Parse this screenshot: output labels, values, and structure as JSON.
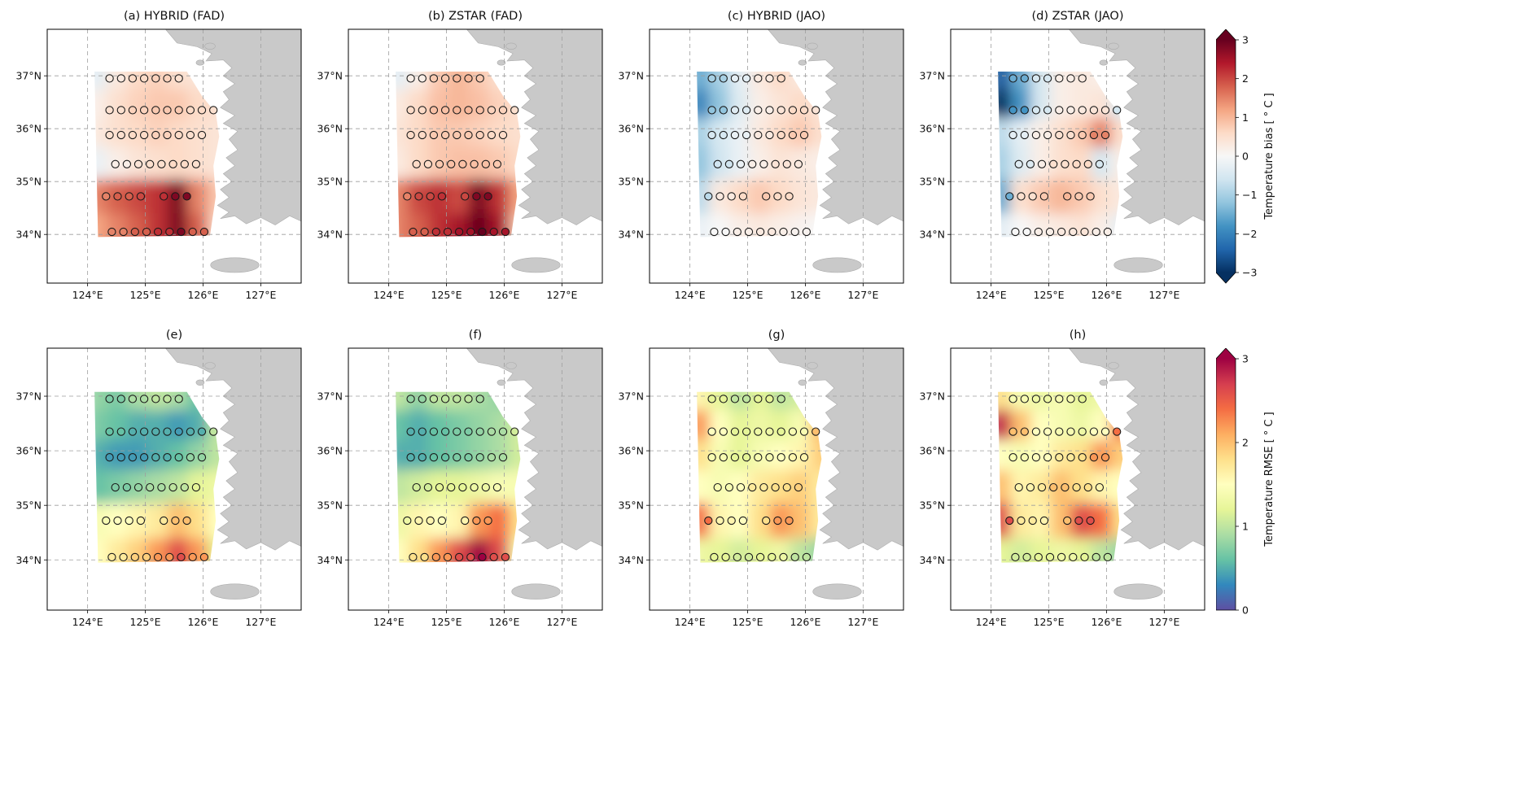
{
  "chart_data": {
    "type": "heatmap",
    "title": "",
    "units": "°C",
    "x_axis": {
      "label": "",
      "ticks": [
        "124°E",
        "125°E",
        "126°E",
        "127°E"
      ],
      "tick_values": [
        124,
        125,
        126,
        127
      ],
      "range": [
        123.3,
        127.7
      ],
      "grid": true
    },
    "y_axis": {
      "label": "",
      "ticks": [
        "34°N",
        "35°N",
        "36°N",
        "37°N"
      ],
      "tick_values": [
        34,
        35,
        36,
        37
      ],
      "range": [
        33.08,
        37.88
      ],
      "grid": true
    },
    "grid_lons": [
      124.2,
      124.55,
      124.9,
      125.25,
      125.6,
      125.95,
      126.3
    ],
    "grid_lats": [
      37.0,
      36.4,
      35.9,
      35.3,
      34.7,
      34.0
    ],
    "station_rows": [
      {
        "lat": 36.95,
        "lons": [
          124.38,
          124.58,
          124.78,
          124.98,
          125.18,
          125.38,
          125.58
        ]
      },
      {
        "lat": 36.35,
        "lons": [
          124.38,
          124.58,
          124.78,
          124.98,
          125.18,
          125.38,
          125.58,
          125.78,
          125.98,
          126.18
        ]
      },
      {
        "lat": 35.88,
        "lons": [
          124.38,
          124.58,
          124.78,
          124.98,
          125.18,
          125.38,
          125.58,
          125.78,
          125.98
        ]
      },
      {
        "lat": 35.33,
        "lons": [
          124.48,
          124.68,
          124.88,
          125.08,
          125.28,
          125.48,
          125.68,
          125.88
        ]
      },
      {
        "lat": 34.72,
        "lons": [
          124.32,
          124.52,
          124.72,
          124.92,
          125.32,
          125.52,
          125.72
        ]
      },
      {
        "lat": 34.05,
        "lons": [
          124.42,
          124.62,
          124.82,
          125.02,
          125.22,
          125.42,
          125.62,
          125.82,
          126.02
        ]
      }
    ],
    "panels": [
      {
        "id": "a",
        "row": 0,
        "colorbar": "bias",
        "title": "(a) HYBRID (FAD)",
        "values": [
          [
            -0.3,
            0.3,
            0.6,
            0.7,
            0.5,
            0.4,
            0.3
          ],
          [
            0.2,
            0.5,
            0.7,
            0.8,
            0.8,
            0.6,
            0.5
          ],
          [
            0.3,
            0.5,
            0.6,
            0.7,
            0.6,
            0.5,
            0.4
          ],
          [
            -0.2,
            0.2,
            0.4,
            0.5,
            0.6,
            0.5,
            0.4
          ],
          [
            1.5,
            1.8,
            2.0,
            2.2,
            2.8,
            1.5,
            0.8
          ],
          [
            1.2,
            1.5,
            1.8,
            2.2,
            2.8,
            1.8,
            0.6
          ]
        ]
      },
      {
        "id": "b",
        "row": 0,
        "colorbar": "bias",
        "title": "(b) ZSTAR (FAD)",
        "values": [
          [
            -0.3,
            0.2,
            0.8,
            1.0,
            0.8,
            0.5,
            0.4
          ],
          [
            0.3,
            0.6,
            0.9,
            1.0,
            0.9,
            0.7,
            0.5
          ],
          [
            0.4,
            0.6,
            0.8,
            0.8,
            0.7,
            0.6,
            0.5
          ],
          [
            0.3,
            0.6,
            0.8,
            0.9,
            0.9,
            0.8,
            0.6
          ],
          [
            1.5,
            2.0,
            2.2,
            2.0,
            2.8,
            2.2,
            1.2
          ],
          [
            1.5,
            1.8,
            2.2,
            2.5,
            3.0,
            2.5,
            0.8
          ]
        ]
      },
      {
        "id": "c",
        "row": 0,
        "colorbar": "bias",
        "title": "(c) HYBRID (JAO)",
        "values": [
          [
            -1.5,
            -1.0,
            -0.3,
            0.3,
            0.6,
            0.3,
            0.2
          ],
          [
            -2.0,
            -1.2,
            -0.4,
            0.2,
            0.4,
            0.6,
            0.4
          ],
          [
            -1.0,
            -0.5,
            -0.2,
            0.3,
            0.6,
            0.8,
            0.5
          ],
          [
            -1.2,
            -0.6,
            -0.2,
            0.2,
            0.4,
            0.3,
            0.2
          ],
          [
            -0.8,
            0.3,
            0.6,
            0.8,
            0.6,
            0.4,
            0.3
          ],
          [
            -0.2,
            0.0,
            0.2,
            0.3,
            0.2,
            0.1,
            0.0
          ]
        ]
      },
      {
        "id": "d",
        "row": 0,
        "colorbar": "bias",
        "title": "(d) ZSTAR (JAO)",
        "values": [
          [
            -2.5,
            -1.5,
            -0.5,
            0.2,
            0.3,
            0.2,
            0.1
          ],
          [
            -3.0,
            -1.8,
            -0.5,
            0.2,
            0.3,
            0.4,
            -0.5
          ],
          [
            -0.8,
            -0.3,
            0.2,
            0.5,
            0.8,
            1.5,
            0.5
          ],
          [
            -1.0,
            -0.4,
            0.2,
            0.5,
            0.6,
            -0.5,
            0.2
          ],
          [
            -1.5,
            0.5,
            0.8,
            1.0,
            0.8,
            0.5,
            0.3
          ],
          [
            -0.3,
            0.0,
            0.2,
            0.3,
            0.4,
            0.2,
            -0.3
          ]
        ]
      },
      {
        "id": "e",
        "row": 1,
        "colorbar": "rmse",
        "title": "(e)",
        "values": [
          [
            0.8,
            0.7,
            0.9,
            1.0,
            0.9,
            0.6,
            1.0
          ],
          [
            0.7,
            0.6,
            0.5,
            0.5,
            0.4,
            0.5,
            1.0
          ],
          [
            0.5,
            0.4,
            0.4,
            0.5,
            0.6,
            0.8,
            1.0
          ],
          [
            0.6,
            0.7,
            0.8,
            0.9,
            1.0,
            1.2,
            1.3
          ],
          [
            1.4,
            1.5,
            1.6,
            1.7,
            2.0,
            1.8,
            1.5
          ],
          [
            1.5,
            1.7,
            1.9,
            2.2,
            2.6,
            2.2,
            1.2
          ]
        ]
      },
      {
        "id": "f",
        "row": 1,
        "colorbar": "rmse",
        "title": "(f)",
        "values": [
          [
            1.0,
            0.8,
            1.0,
            1.0,
            0.9,
            0.8,
            1.0
          ],
          [
            0.6,
            0.5,
            0.6,
            0.7,
            0.8,
            0.9,
            1.1
          ],
          [
            0.5,
            0.5,
            0.6,
            0.7,
            0.8,
            0.9,
            1.1
          ],
          [
            1.0,
            1.1,
            1.2,
            1.2,
            1.3,
            1.4,
            1.4
          ],
          [
            1.3,
            1.6,
            1.5,
            1.6,
            2.2,
            2.4,
            1.8
          ],
          [
            1.5,
            1.8,
            2.2,
            2.6,
            3.0,
            2.6,
            1.4
          ]
        ]
      },
      {
        "id": "g",
        "row": 1,
        "colorbar": "rmse",
        "title": "(g)",
        "values": [
          [
            1.6,
            1.2,
            1.0,
            1.2,
            1.0,
            1.1,
            1.3
          ],
          [
            2.2,
            1.5,
            1.2,
            1.3,
            1.2,
            1.4,
            2.0
          ],
          [
            1.8,
            1.4,
            1.2,
            1.4,
            1.5,
            1.6,
            1.9
          ],
          [
            1.5,
            1.4,
            1.5,
            1.7,
            1.8,
            1.9,
            1.7
          ],
          [
            2.4,
            1.6,
            1.5,
            1.8,
            2.2,
            2.0,
            1.7
          ],
          [
            1.3,
            1.2,
            1.1,
            1.2,
            1.3,
            1.0,
            0.8
          ]
        ]
      },
      {
        "id": "h",
        "row": 1,
        "colorbar": "rmse",
        "title": "(h)",
        "values": [
          [
            1.8,
            1.4,
            1.3,
            1.4,
            1.2,
            1.3,
            1.5
          ],
          [
            2.8,
            2.0,
            1.5,
            1.4,
            1.3,
            1.5,
            2.4
          ],
          [
            1.5,
            1.4,
            1.5,
            1.7,
            1.8,
            2.2,
            1.9
          ],
          [
            2.0,
            1.6,
            1.7,
            2.0,
            1.8,
            1.6,
            1.5
          ],
          [
            2.6,
            1.7,
            1.6,
            2.0,
            2.6,
            2.4,
            1.8
          ],
          [
            1.2,
            1.1,
            1.2,
            1.3,
            1.2,
            1.0,
            0.8
          ]
        ]
      }
    ],
    "colorbars": [
      {
        "id": "bias",
        "label": "Temperature bias [ ° C ]",
        "min": -3,
        "max": 3,
        "arrow_top": true,
        "arrow_bottom": true,
        "ticks": [
          {
            "v": 3,
            "label": "3"
          },
          {
            "v": 2,
            "label": "2"
          },
          {
            "v": 1,
            "label": "1"
          },
          {
            "v": 0,
            "label": "0"
          },
          {
            "v": -1,
            "label": "−1"
          },
          {
            "v": -2,
            "label": "−2"
          },
          {
            "v": -3,
            "label": "−3"
          }
        ],
        "stops": [
          {
            "v": -3.0,
            "c": "#053061"
          },
          {
            "v": -2.4,
            "c": "#2166ac"
          },
          {
            "v": -1.8,
            "c": "#4393c3"
          },
          {
            "v": -1.2,
            "c": "#92c5de"
          },
          {
            "v": -0.6,
            "c": "#d1e5f0"
          },
          {
            "v": 0.0,
            "c": "#f7f7f7"
          },
          {
            "v": 0.6,
            "c": "#fddbc7"
          },
          {
            "v": 1.2,
            "c": "#f4a582"
          },
          {
            "v": 1.8,
            "c": "#d6604d"
          },
          {
            "v": 2.4,
            "c": "#b2182b"
          },
          {
            "v": 3.0,
            "c": "#67001f"
          }
        ]
      },
      {
        "id": "rmse",
        "label": "Temperature RMSE [ ° C ]",
        "min": 0,
        "max": 3,
        "arrow_top": true,
        "arrow_bottom": false,
        "ticks": [
          {
            "v": 3,
            "label": "3"
          },
          {
            "v": 2,
            "label": "2"
          },
          {
            "v": 1,
            "label": "1"
          },
          {
            "v": 0,
            "label": "0"
          }
        ],
        "stops": [
          {
            "v": 0.0,
            "c": "#5e4fa2"
          },
          {
            "v": 0.3,
            "c": "#3288bd"
          },
          {
            "v": 0.6,
            "c": "#66c2a5"
          },
          {
            "v": 0.9,
            "c": "#abdda4"
          },
          {
            "v": 1.2,
            "c": "#e6f598"
          },
          {
            "v": 1.5,
            "c": "#ffffbf"
          },
          {
            "v": 1.8,
            "c": "#fee08b"
          },
          {
            "v": 2.1,
            "c": "#fdae61"
          },
          {
            "v": 2.4,
            "c": "#f46d43"
          },
          {
            "v": 2.7,
            "c": "#d53e4f"
          },
          {
            "v": 3.0,
            "c": "#9e0142"
          }
        ]
      }
    ],
    "colors": {
      "land": "#c9c9c9",
      "coastline": "#ababab",
      "ocean": "#ffffff",
      "gridline": "#9e9e9e",
      "spine": "#000000",
      "station_edge": "#1a1a1a"
    }
  }
}
